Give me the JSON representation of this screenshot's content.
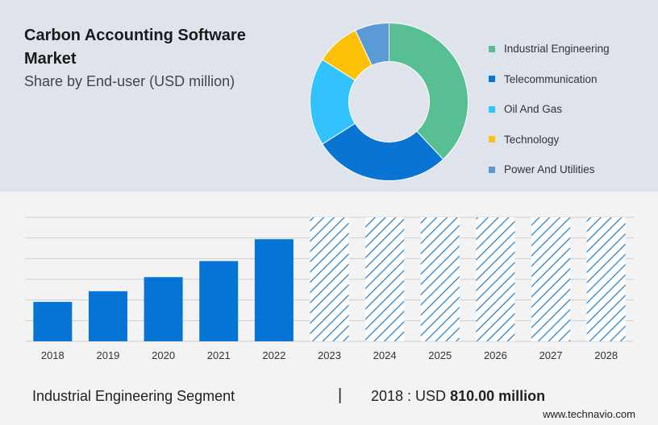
{
  "header": {
    "title": "Carbon Accounting Software Market",
    "subtitle": "Share by End-user (USD million)"
  },
  "colors": {
    "top_bg": "#dfe4ec",
    "bottom_bg": "#f3f3f3",
    "bar": "#0674d4",
    "forecast_hatch": "#1b7bc8"
  },
  "chart_data": [
    {
      "type": "pie",
      "variant": "donut",
      "title": "Share by End-user (USD million)",
      "legend_position": "right",
      "slices": [
        {
          "label": "Industrial Engineering",
          "value": 38,
          "color": "#57bf93"
        },
        {
          "label": "Telecommunication",
          "value": 28,
          "color": "#0a74d2"
        },
        {
          "label": "Oil And Gas",
          "value": 18,
          "color": "#32c3ff"
        },
        {
          "label": "Technology",
          "value": 9,
          "color": "#ffc107"
        },
        {
          "label": "Power And Utilities",
          "value": 7,
          "color": "#5b9bd5"
        }
      ]
    },
    {
      "type": "bar",
      "title": "Industrial Engineering Segment",
      "categories": [
        "2018",
        "2019",
        "2020",
        "2021",
        "2022",
        "2023",
        "2024",
        "2025",
        "2026",
        "2027",
        "2028"
      ],
      "values": [
        810,
        1030,
        1320,
        1650,
        2100,
        null,
        null,
        null,
        null,
        null,
        null
      ],
      "forecast_categories": [
        "2023",
        "2024",
        "2025",
        "2026",
        "2027",
        "2028"
      ],
      "forecast_note": "forecast years shown as hatched bars without values",
      "ylim": [
        0,
        2550
      ],
      "grid": true,
      "xlabel": "",
      "ylabel": ""
    }
  ],
  "footer": {
    "segment_label": "Industrial Engineering Segment",
    "separator": "|",
    "value_prefix": "2018 : USD",
    "value_bold": "810.00 million"
  },
  "brand": "www.technavio.com"
}
